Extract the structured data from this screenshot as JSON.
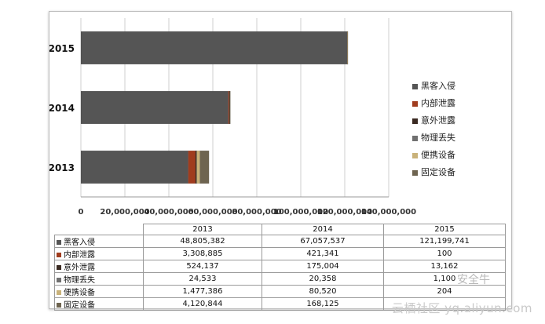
{
  "chart_data": {
    "type": "bar",
    "orientation": "horizontal",
    "stacked": true,
    "categories": [
      "2013",
      "2014",
      "2015"
    ],
    "series": [
      {
        "name": "黑客入侵",
        "color": "#555555",
        "values": [
          48805382,
          67057537,
          121199741
        ]
      },
      {
        "name": "内部泄露",
        "color": "#a03c1e",
        "values": [
          3308885,
          421341,
          100
        ]
      },
      {
        "name": "意外泄露",
        "color": "#3a2a22",
        "values": [
          524137,
          175004,
          13162
        ]
      },
      {
        "name": "物理丢失",
        "color": "#707070",
        "values": [
          24533,
          20358,
          1100
        ]
      },
      {
        "name": "便携设备",
        "color": "#c9b27a",
        "values": [
          1477386,
          80520,
          204
        ]
      },
      {
        "name": "固定设备",
        "color": "#6e6450",
        "values": [
          4120844,
          168125,
          null
        ]
      }
    ],
    "xlim": [
      0,
      140000000
    ],
    "xticks": [
      "0",
      "20,000,000",
      "40,000,000",
      "60,000,000",
      "80,000,000",
      "100,000,000",
      "120,000,000",
      "140,000,000"
    ],
    "grid": true,
    "legend_position": "right"
  },
  "table": {
    "header": [
      "2013",
      "2014",
      "2015"
    ],
    "rows": [
      {
        "label": "黑客入侵",
        "color": "#555555",
        "cells": [
          "48,805,382",
          "67,057,537",
          "121,199,741"
        ]
      },
      {
        "label": "内部泄露",
        "color": "#a03c1e",
        "cells": [
          "3,308,885",
          "421,341",
          "100"
        ]
      },
      {
        "label": "意外泄露",
        "color": "#3a2a22",
        "cells": [
          "524,137",
          "175,004",
          "13,162"
        ]
      },
      {
        "label": "物理丢失",
        "color": "#707070",
        "cells": [
          "24,533",
          "20,358",
          "1,100"
        ]
      },
      {
        "label": "便携设备",
        "color": "#c9b27a",
        "cells": [
          "1,477,386",
          "80,520",
          "204"
        ]
      },
      {
        "label": "固定设备",
        "color": "#6e6450",
        "cells": [
          "4,120,844",
          "168,125",
          ""
        ]
      }
    ]
  },
  "watermark": {
    "brand": "安全牛",
    "site": "云栖社区 yq.aliyun.com"
  }
}
